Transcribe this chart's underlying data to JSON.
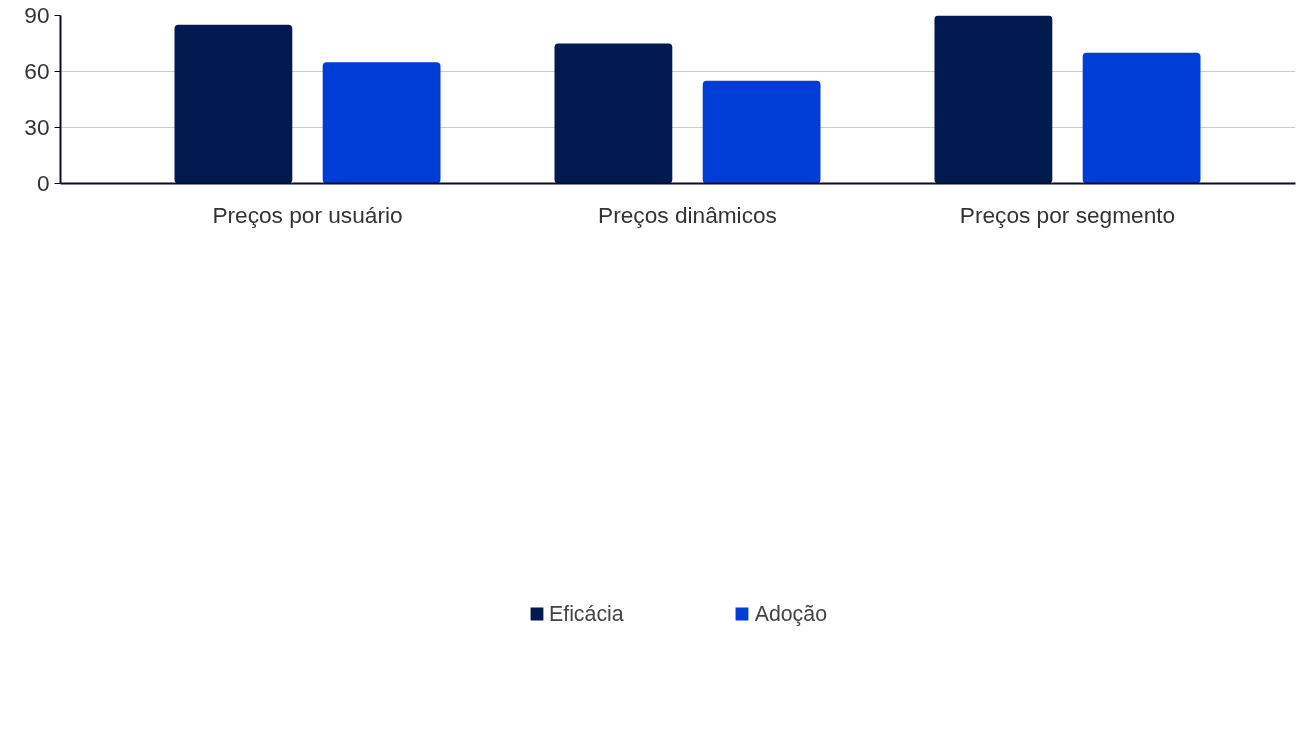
{
  "chart_data": {
    "type": "bar",
    "categories": [
      "Preços por usuário",
      "Preços dinâmicos",
      "Preços por segmento"
    ],
    "series": [
      {
        "name": "Eficácia",
        "color": "#001a4f",
        "values": [
          85,
          75,
          90
        ]
      },
      {
        "name": "Adoção",
        "color": "#003cd6",
        "values": [
          65,
          55,
          70
        ]
      }
    ],
    "ylim": [
      0,
      90
    ],
    "yticks": [
      0,
      30,
      60,
      90
    ],
    "grid": "y",
    "legend": "bottom"
  }
}
